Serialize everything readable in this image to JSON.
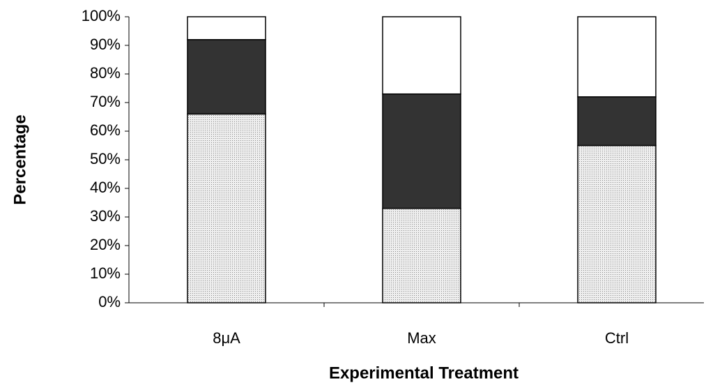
{
  "chart_data": {
    "type": "stacked_bar",
    "x_label": "Experimental Treatment",
    "y_label": "Percentage",
    "categories": [
      "8μA",
      "Max",
      "Ctrl"
    ],
    "series": [
      {
        "color": "#d9d9d9",
        "values": [
          66,
          33,
          55
        ]
      },
      {
        "color": "#333333",
        "values": [
          26,
          40,
          17
        ]
      },
      {
        "color": "#ffffff",
        "values": [
          8,
          27,
          28
        ]
      }
    ],
    "ylim": [
      0,
      100
    ],
    "yticks": [
      {
        "value": 0,
        "label": "0%"
      },
      {
        "value": 10,
        "label": "10%"
      },
      {
        "value": 20,
        "label": "20%"
      },
      {
        "value": 30,
        "label": "30%"
      },
      {
        "value": 40,
        "label": "40%"
      },
      {
        "value": 50,
        "label": "50%"
      },
      {
        "value": 60,
        "label": "60%"
      },
      {
        "value": 70,
        "label": "70%"
      },
      {
        "value": 80,
        "label": "80%"
      },
      {
        "value": 90,
        "label": "90%"
      },
      {
        "value": 100,
        "label": "100%"
      }
    ]
  }
}
